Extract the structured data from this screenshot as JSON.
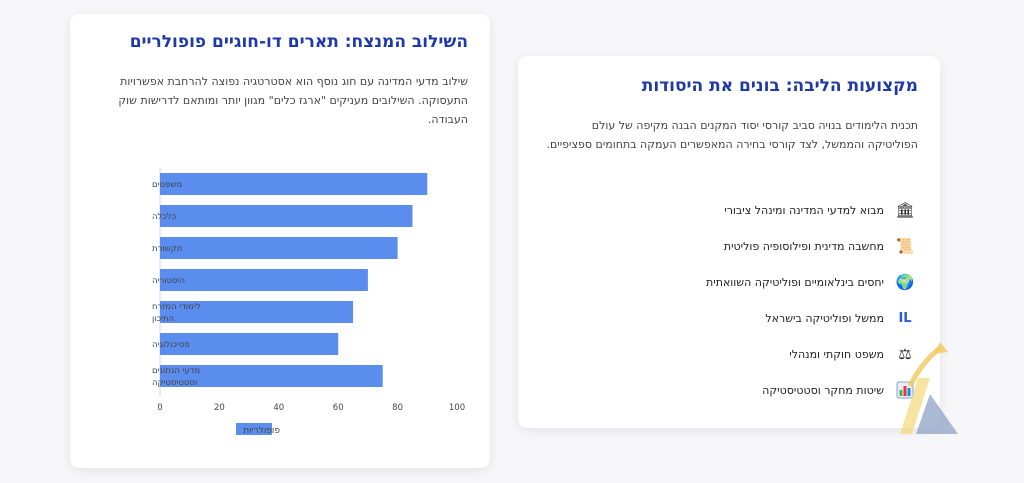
{
  "left_card": {
    "title": "השילוב המנצח: תארים דו-חוגיים פופולריים",
    "description": "שילוב מדעי המדינה עם חוג נוסף הוא אסטרטגיה נפוצה להרחבת אפשרויות התעסוקה. השילובים מעניקים \"ארגז כלים\" מגוון יותר ומותאם לדרישות שוק העבודה."
  },
  "right_card": {
    "title": "מקצועות הליבה: בונים את היסודות",
    "description": "תכנית הלימודים בנויה סביב קורסי יסוד המקנים הבנה מקיפה של עולם הפוליטיקה והממשל, לצד קורסי בחירה המאפשרים העמקה בתחומים ספציפיים.",
    "courses": [
      {
        "icon": "classical-building-icon",
        "label": "מבוא למדעי המדינה ומינהל ציבורי"
      },
      {
        "icon": "scroll-icon",
        "label": "מחשבה מדינית ופילוסופיה פוליטית"
      },
      {
        "icon": "globe-icon",
        "label": "יחסים בינלאומיים ופוליטיקה השוואתית"
      },
      {
        "icon": "il-icon",
        "icon_text": "IL",
        "label": "ממשל ופוליטיקה בישראל"
      },
      {
        "icon": "scales-icon",
        "label": "משפט חוקתי ומנהלי"
      },
      {
        "icon": "bar-chart-icon",
        "label": "שיטות מחקר וסטטיסטיקה"
      }
    ]
  },
  "chart_data": {
    "type": "bar",
    "orientation": "horizontal",
    "categories": [
      "משפטים",
      "כלכלה",
      "תקשורת",
      "היסטוריה",
      "לימודי המזרח התיכון",
      "פסיכולוגיה",
      "מדעי הנתונים וסטטיסטיקה"
    ],
    "series": [
      {
        "name": "פופולריות",
        "values": [
          90,
          85,
          80,
          70,
          65,
          60,
          75
        ]
      }
    ],
    "xlim": [
      0,
      100
    ],
    "xticks": [
      0,
      20,
      40,
      60,
      80,
      100
    ],
    "grid": false,
    "legend": "bottom",
    "color": "#5b8def"
  }
}
